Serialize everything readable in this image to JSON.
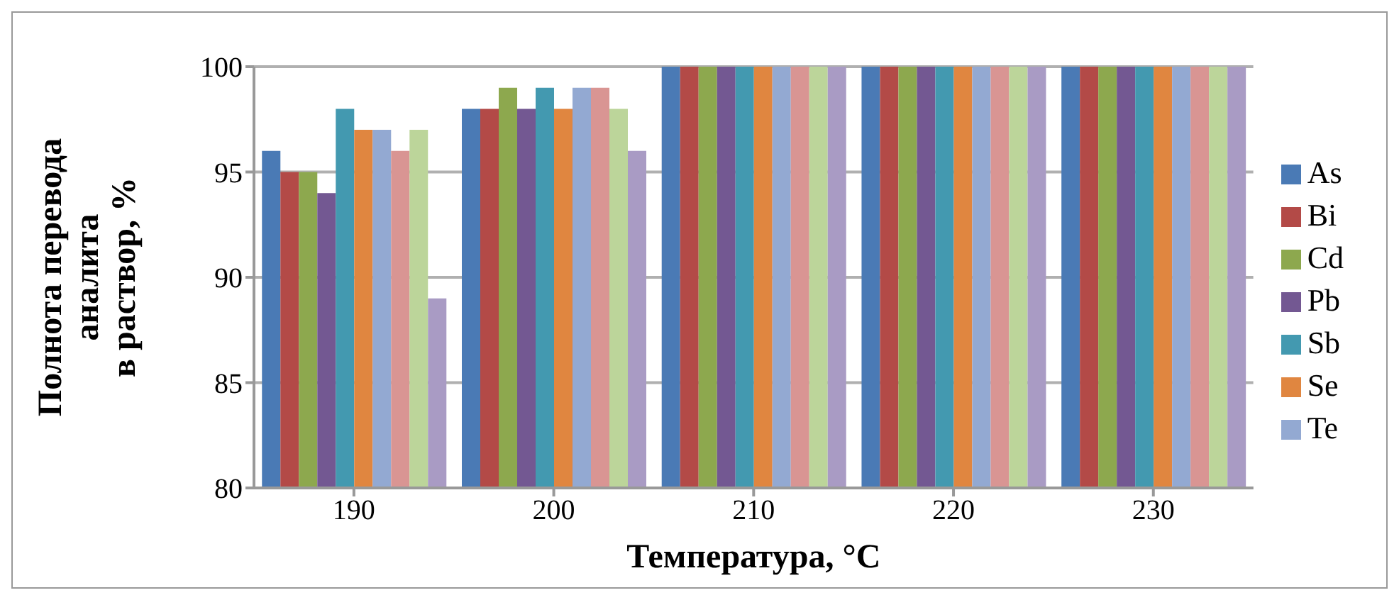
{
  "chart_data": {
    "type": "bar",
    "xlabel": "Температура, °C",
    "ylabel": "Полнота перевода\nаналита\nв раствор, %",
    "categories": [
      "190",
      "200",
      "210",
      "220",
      "230"
    ],
    "series": [
      {
        "name": "As",
        "color": "#4a7ab5",
        "values": [
          96,
          98,
          100,
          100,
          100
        ]
      },
      {
        "name": "Bi",
        "color": "#b34a47",
        "values": [
          95,
          98,
          100,
          100,
          100
        ]
      },
      {
        "name": "Cd",
        "color": "#8da84e",
        "values": [
          95,
          99,
          100,
          100,
          100
        ]
      },
      {
        "name": "Pb",
        "color": "#735892",
        "values": [
          94,
          98,
          100,
          100,
          100
        ]
      },
      {
        "name": "Sb",
        "color": "#4399b0",
        "values": [
          98,
          99,
          100,
          100,
          100
        ]
      },
      {
        "name": "Se",
        "color": "#e08640",
        "values": [
          97,
          98,
          100,
          100,
          100
        ]
      },
      {
        "name": "Te",
        "color": "#93a9d2",
        "values": [
          97,
          99,
          100,
          100,
          100
        ]
      },
      {
        "color": "#d99593",
        "values": [
          96,
          99,
          100,
          100,
          100
        ]
      },
      {
        "color": "#bcd59a",
        "values": [
          97,
          98,
          100,
          100,
          100
        ]
      },
      {
        "color": "#a99bc4",
        "values": [
          89,
          96,
          100,
          100,
          100
        ]
      }
    ],
    "ylim": [
      80,
      100
    ],
    "yticks": [
      80,
      85,
      90,
      95,
      100
    ],
    "grid": "y",
    "legend": "right"
  }
}
